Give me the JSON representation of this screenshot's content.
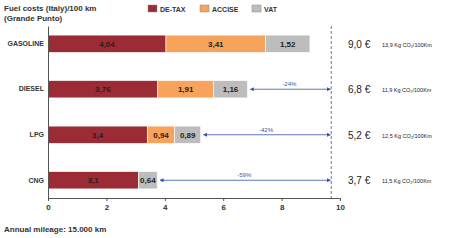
{
  "chart_data": {
    "type": "bar",
    "orientation": "horizontal",
    "stacked": true,
    "data_labels": true,
    "title": "Fuel costs (Italy)/100 km",
    "subtitle": "(Grande Punto)",
    "annotation": "Annual mileage: 15.000 km",
    "categories": [
      "GASOLINE",
      "DIESEL",
      "LPG",
      "CNG"
    ],
    "series": [
      {
        "name": "DE-TAX",
        "color": "#9b2c35",
        "values": [
          4.04,
          3.76,
          3.4,
          3.1
        ],
        "value_labels": [
          "4,04",
          "3,76",
          "3,4",
          "3,1"
        ]
      },
      {
        "name": "ACCISE",
        "color": "#f7a35c",
        "values": [
          3.41,
          1.91,
          0.94,
          null
        ],
        "value_labels": [
          "3,41",
          "1,91",
          "0,94",
          null
        ]
      },
      {
        "name": "VAT",
        "color": "#bdbdbd",
        "values": [
          1.52,
          1.16,
          0.89,
          0.64
        ],
        "value_labels": [
          "1,52",
          "1,16",
          "0,89",
          "0,64"
        ]
      }
    ],
    "totals": {
      "values": [
        9.0,
        6.8,
        5.2,
        3.7
      ],
      "labels": [
        "9,0 €",
        "6,8 €",
        "5,2 €",
        "3,7 €"
      ]
    },
    "co2": {
      "values": [
        13.9,
        11.9,
        12.5,
        11.5
      ],
      "labels": [
        "13,9 Kg CO₂/100Km",
        "11,9 Kg CO₂/100Km",
        "12,5 Kg CO₂/100Km",
        "11,5 Kg CO₂/100Km"
      ]
    },
    "savings": {
      "values": [
        null,
        -24,
        -42,
        -59
      ],
      "labels": [
        null,
        "-24%",
        "-42%",
        "-59%"
      ]
    },
    "reference_x": 9.7,
    "legend": "top",
    "xlim": [
      0,
      10
    ],
    "xticks": [
      0,
      2,
      4,
      6,
      8,
      10
    ],
    "grid": false
  }
}
